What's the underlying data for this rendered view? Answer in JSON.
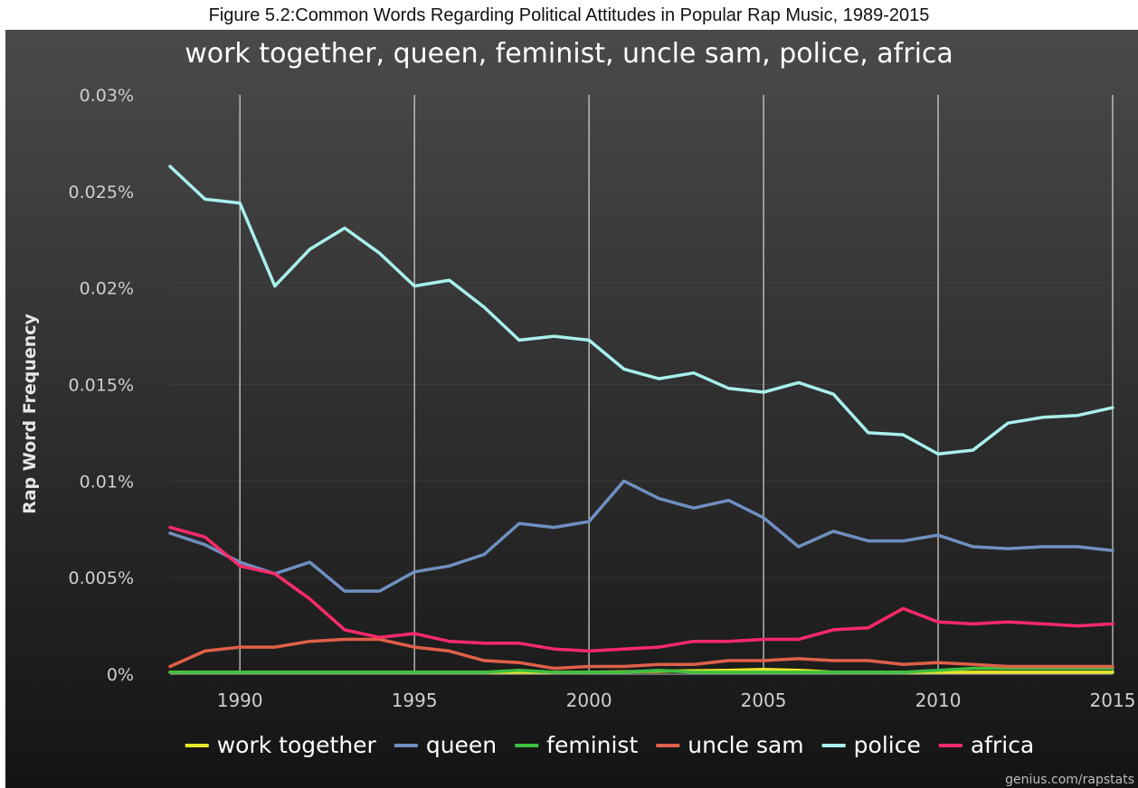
{
  "figure_caption": "Figure 5.2:Common Words Regarding Political Attitudes in Popular Rap Music, 1989-2015",
  "source": "genius.com/rapstats",
  "colors": {
    "background_top": "#4a4a4a",
    "background_bottom": "#141414",
    "text": "#ffffff",
    "tick_text": "#cfcfcf",
    "gridline": "#d8d8d8"
  },
  "chart_data": {
    "type": "line",
    "title": "work together, queen, feminist, uncle sam, police, africa",
    "xlabel": "",
    "ylabel": "Rap Word Frequency",
    "ylim": [
      0,
      0.03
    ],
    "xlim": [
      1988,
      2015
    ],
    "x_ticks": [
      1990,
      1995,
      2000,
      2005,
      2010,
      2015
    ],
    "x_tick_labels": [
      "1990",
      "1995",
      "2000",
      "2005",
      "2010",
      "2015"
    ],
    "y_ticks": [
      0,
      0.005,
      0.01,
      0.015,
      0.02,
      0.025,
      0.03
    ],
    "y_tick_labels": [
      "0%",
      "0.005%",
      "0.01%",
      "0.015%",
      "0.02%",
      "0.025%",
      "0.03%"
    ],
    "y_unit": "%",
    "grid": "vertical gridlines at x ticks",
    "legend_position": "bottom",
    "x": [
      1988,
      1989,
      1990,
      1991,
      1992,
      1993,
      1994,
      1995,
      1996,
      1997,
      1998,
      1999,
      2000,
      2001,
      2002,
      2003,
      2004,
      2005,
      2006,
      2007,
      2008,
      2009,
      2010,
      2011,
      2012,
      2013,
      2014,
      2015
    ],
    "series": [
      {
        "name": "work together",
        "color": "#e8e82a",
        "values": [
          0.0001,
          0.0001,
          0.0001,
          0.0001,
          0.0001,
          0.0001,
          0.0001,
          0.0001,
          0.0001,
          0.0001,
          0.0001,
          0.0001,
          0.0001,
          0.00012,
          0.00015,
          0.00018,
          0.0002,
          0.00025,
          0.0002,
          0.0001,
          0.0001,
          0.0001,
          0.0001,
          0.0001,
          0.0001,
          0.0001,
          0.0001,
          0.0001
        ]
      },
      {
        "name": "queen",
        "color": "#6f90c0",
        "values": [
          0.0073,
          0.0067,
          0.0058,
          0.0052,
          0.0058,
          0.0043,
          0.0043,
          0.0053,
          0.0056,
          0.0062,
          0.0078,
          0.0076,
          0.0079,
          0.01,
          0.0091,
          0.0086,
          0.009,
          0.0081,
          0.0066,
          0.0074,
          0.0069,
          0.0069,
          0.0072,
          0.0066,
          0.0065,
          0.0066,
          0.0066,
          0.0064
        ]
      },
      {
        "name": "feminist",
        "color": "#3fbf3f",
        "values": [
          0.0001,
          0.0001,
          0.0001,
          0.0001,
          0.0001,
          0.0001,
          0.0001,
          0.0001,
          0.0001,
          0.0001,
          0.0002,
          0.0001,
          0.0001,
          0.0001,
          0.0002,
          0.0001,
          0.0001,
          0.0001,
          0.0001,
          0.0001,
          0.0001,
          0.0001,
          0.0002,
          0.0003,
          0.0003,
          0.0003,
          0.0003,
          0.0003
        ]
      },
      {
        "name": "uncle sam",
        "color": "#e06048",
        "values": [
          0.0004,
          0.0012,
          0.0014,
          0.0014,
          0.0017,
          0.0018,
          0.0018,
          0.0014,
          0.0012,
          0.0007,
          0.0006,
          0.0003,
          0.0004,
          0.0004,
          0.0005,
          0.0005,
          0.0007,
          0.0007,
          0.0008,
          0.0007,
          0.0007,
          0.0005,
          0.0006,
          0.0005,
          0.0004,
          0.0004,
          0.0004,
          0.0004
        ]
      },
      {
        "name": "police",
        "color": "#a8f0ec",
        "values": [
          0.0263,
          0.0246,
          0.0244,
          0.0201,
          0.022,
          0.0231,
          0.0218,
          0.0201,
          0.0204,
          0.019,
          0.0173,
          0.0175,
          0.0173,
          0.0158,
          0.0153,
          0.0156,
          0.0148,
          0.0146,
          0.0151,
          0.0145,
          0.0125,
          0.0124,
          0.0114,
          0.0116,
          0.013,
          0.0133,
          0.0134,
          0.0138
        ]
      },
      {
        "name": "africa",
        "color": "#ff2a6a",
        "values": [
          0.0076,
          0.0071,
          0.0056,
          0.0052,
          0.0039,
          0.0023,
          0.0019,
          0.0021,
          0.0017,
          0.0016,
          0.0016,
          0.0013,
          0.0012,
          0.0013,
          0.0014,
          0.0017,
          0.0017,
          0.0018,
          0.0018,
          0.0023,
          0.0024,
          0.0034,
          0.0027,
          0.0026,
          0.0027,
          0.0026,
          0.0025,
          0.0026
        ]
      }
    ]
  }
}
